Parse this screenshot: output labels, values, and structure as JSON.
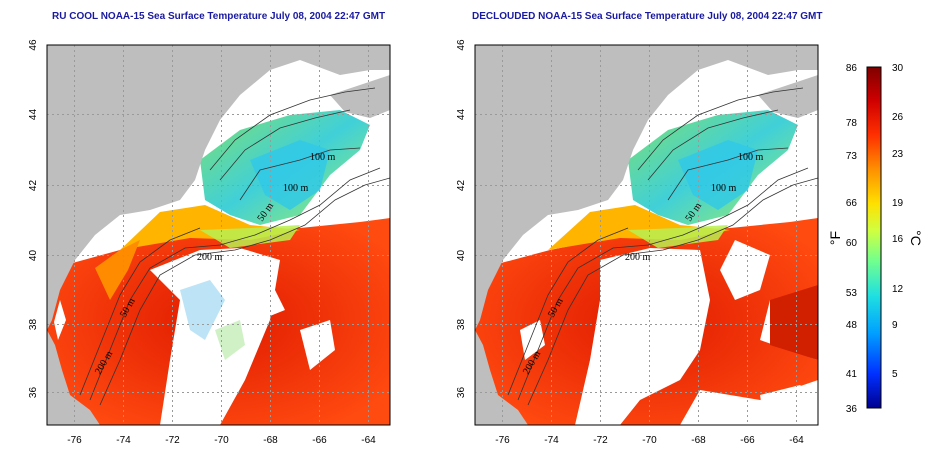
{
  "panels": [
    {
      "title": "RU COOL NOAA-15 Sea Surface Temperature July 08, 2004 22:47 GMT",
      "contour_labels": [
        "100 m",
        "100 m",
        "50 m",
        "200 m",
        "50 m",
        "200 m"
      ]
    },
    {
      "title": "DECLOUDED NOAA-15 Sea Surface Temperature July 08, 2004 22:47 GMT",
      "contour_labels": [
        "100 m",
        "100 m",
        "50 m",
        "200 m",
        "50 m",
        "200 m"
      ]
    }
  ],
  "axes": {
    "x_ticks": [
      "-76",
      "-74",
      "-72",
      "-70",
      "-68",
      "-66",
      "-64"
    ],
    "y_ticks": [
      "46",
      "44",
      "42",
      "40",
      "38",
      "36"
    ]
  },
  "colorbar": {
    "fahrenheit_ticks": [
      "86",
      "78",
      "73",
      "66",
      "60",
      "53",
      "48",
      "41",
      "36"
    ],
    "celsius_ticks": [
      "30",
      "26",
      "23",
      "19",
      "16",
      "12",
      "9",
      "5"
    ],
    "fahrenheit_unit": "°F",
    "celsius_unit": "°C",
    "colors": [
      "#00008f",
      "#0030ff",
      "#00a0ff",
      "#20e0e0",
      "#70ff90",
      "#d0ff40",
      "#ffe000",
      "#ff9000",
      "#ff3000",
      "#d00000",
      "#800000"
    ]
  },
  "colors": {
    "land": "#bebebe",
    "cloud": "#ffffff",
    "grid": "#9a9a9a"
  }
}
